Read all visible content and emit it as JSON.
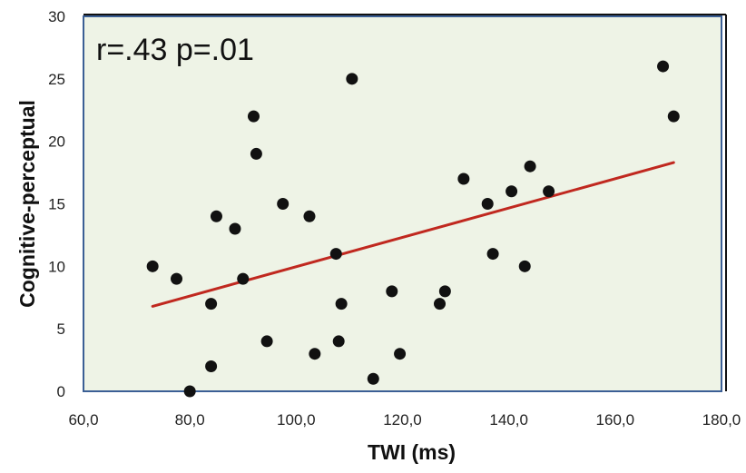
{
  "chart_data": {
    "type": "scatter",
    "xlabel": "TWI (ms)",
    "ylabel": "Cognitive-perceptual",
    "annotation": "r=.43 p=.01",
    "xlim": [
      60,
      180
    ],
    "ylim": [
      0,
      30
    ],
    "x_ticks": [
      "60,0",
      "80,0",
      "100,0",
      "120,0",
      "140,0",
      "160,0",
      "180,0"
    ],
    "y_ticks": [
      "0",
      "5",
      "10",
      "15",
      "20",
      "25",
      "30"
    ],
    "grid": false,
    "plot_background": "#eef3e6",
    "point_color": "#111111",
    "trendline_color": "#c0281f",
    "points": [
      {
        "x": 73.0,
        "y": 10
      },
      {
        "x": 77.5,
        "y": 9
      },
      {
        "x": 80.0,
        "y": 0
      },
      {
        "x": 84.0,
        "y": 7
      },
      {
        "x": 84.0,
        "y": 2
      },
      {
        "x": 85.0,
        "y": 14
      },
      {
        "x": 88.5,
        "y": 13
      },
      {
        "x": 90.0,
        "y": 9
      },
      {
        "x": 92.0,
        "y": 22
      },
      {
        "x": 92.5,
        "y": 19
      },
      {
        "x": 94.5,
        "y": 4
      },
      {
        "x": 97.5,
        "y": 15
      },
      {
        "x": 102.5,
        "y": 14
      },
      {
        "x": 103.5,
        "y": 3
      },
      {
        "x": 107.5,
        "y": 11
      },
      {
        "x": 108.0,
        "y": 4
      },
      {
        "x": 108.5,
        "y": 7
      },
      {
        "x": 110.5,
        "y": 25
      },
      {
        "x": 114.5,
        "y": 1
      },
      {
        "x": 118.0,
        "y": 8
      },
      {
        "x": 119.5,
        "y": 3
      },
      {
        "x": 127.0,
        "y": 7
      },
      {
        "x": 128.0,
        "y": 8
      },
      {
        "x": 131.5,
        "y": 17
      },
      {
        "x": 136.0,
        "y": 15
      },
      {
        "x": 137.0,
        "y": 11
      },
      {
        "x": 140.5,
        "y": 16
      },
      {
        "x": 143.0,
        "y": 10
      },
      {
        "x": 144.0,
        "y": 18
      },
      {
        "x": 147.5,
        "y": 16
      },
      {
        "x": 169.0,
        "y": 26
      },
      {
        "x": 171.0,
        "y": 22
      }
    ],
    "trendline": {
      "x": [
        73,
        171
      ],
      "y": [
        6.8,
        18.3
      ]
    }
  }
}
